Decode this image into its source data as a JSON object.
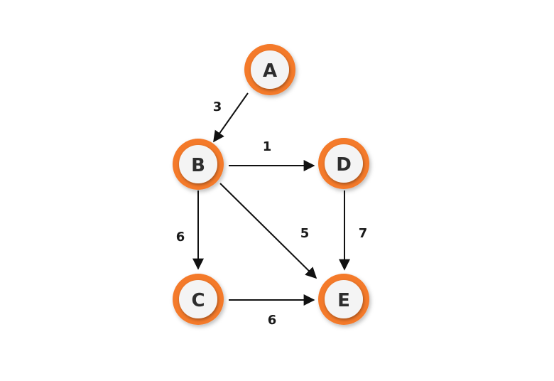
{
  "graph": {
    "nodes": [
      {
        "id": "A",
        "label": "A"
      },
      {
        "id": "B",
        "label": "B"
      },
      {
        "id": "C",
        "label": "C"
      },
      {
        "id": "D",
        "label": "D"
      },
      {
        "id": "E",
        "label": "E"
      }
    ],
    "edges": [
      {
        "from": "A",
        "to": "B",
        "weight": "3"
      },
      {
        "from": "B",
        "to": "D",
        "weight": "1"
      },
      {
        "from": "B",
        "to": "C",
        "weight": "6"
      },
      {
        "from": "B",
        "to": "E",
        "weight": "5"
      },
      {
        "from": "D",
        "to": "E",
        "weight": "7"
      },
      {
        "from": "C",
        "to": "E",
        "weight": "6"
      }
    ],
    "colors": {
      "node_ring": "#f47a2a",
      "node_fill": "#f4f4f4",
      "label": "#2e2e2e",
      "edge": "#111111"
    }
  }
}
